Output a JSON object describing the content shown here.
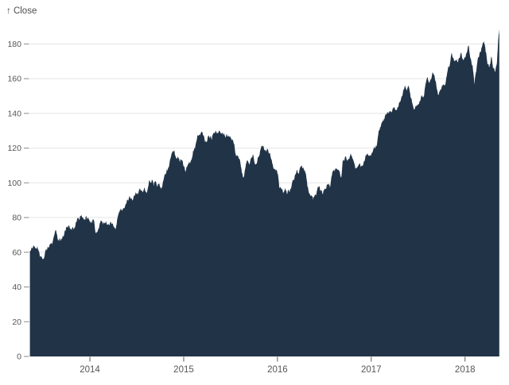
{
  "chart_data": {
    "type": "area",
    "title": "",
    "ylabel": "Close",
    "ylabel_display": "↑ Close",
    "series_name": "Close",
    "xlim": [
      2013.355,
      2018.367
    ],
    "ylim": [
      0,
      190
    ],
    "x_ticks": [
      2014,
      2015,
      2016,
      2017,
      2018
    ],
    "y_ticks": [
      0,
      20,
      40,
      60,
      80,
      100,
      120,
      140,
      160,
      180
    ],
    "grid": "horizontal",
    "legend": "none",
    "area_color": "#213346",
    "grid_color": "#e4e4e4",
    "tick_dash_color": "#8a8a8a",
    "xtick_mark_color": "#555555",
    "label_color": "#565656",
    "volatility": 1.6,
    "points": [
      [
        2013.36,
        60.4
      ],
      [
        2013.38,
        62.9
      ],
      [
        2013.4,
        64.0
      ],
      [
        2013.42,
        62.2
      ],
      [
        2013.44,
        63.6
      ],
      [
        2013.46,
        60.0
      ],
      [
        2013.48,
        57.5
      ],
      [
        2013.5,
        56.3
      ],
      [
        2013.52,
        59.5
      ],
      [
        2013.54,
        60.9
      ],
      [
        2013.56,
        62.6
      ],
      [
        2013.58,
        64.9
      ],
      [
        2013.6,
        65.2
      ],
      [
        2013.62,
        69.9
      ],
      [
        2013.64,
        72.5
      ],
      [
        2013.66,
        66.8
      ],
      [
        2013.68,
        68.3
      ],
      [
        2013.7,
        67.6
      ],
      [
        2013.72,
        69.0
      ],
      [
        2013.74,
        72.1
      ],
      [
        2013.76,
        74.7
      ],
      [
        2013.78,
        75.2
      ],
      [
        2013.8,
        73.2
      ],
      [
        2013.82,
        74.4
      ],
      [
        2013.84,
        74.2
      ],
      [
        2013.86,
        77.9
      ],
      [
        2013.88,
        79.4
      ],
      [
        2013.9,
        81.1
      ],
      [
        2013.92,
        80.0
      ],
      [
        2013.94,
        79.2
      ],
      [
        2013.96,
        80.9
      ],
      [
        2013.98,
        80.1
      ],
      [
        2014.0,
        77.3
      ],
      [
        2014.02,
        77.0
      ],
      [
        2014.04,
        78.6
      ],
      [
        2014.06,
        71.4
      ],
      [
        2014.08,
        71.6
      ],
      [
        2014.1,
        74.8
      ],
      [
        2014.12,
        78.0
      ],
      [
        2014.14,
        75.9
      ],
      [
        2014.16,
        76.8
      ],
      [
        2014.18,
        75.8
      ],
      [
        2014.2,
        76.7
      ],
      [
        2014.22,
        77.5
      ],
      [
        2014.24,
        76.6
      ],
      [
        2014.26,
        74.2
      ],
      [
        2014.28,
        75.0
      ],
      [
        2014.3,
        81.1
      ],
      [
        2014.32,
        84.3
      ],
      [
        2014.34,
        84.6
      ],
      [
        2014.36,
        85.4
      ],
      [
        2014.38,
        87.7
      ],
      [
        2014.4,
        90.4
      ],
      [
        2014.42,
        92.2
      ],
      [
        2014.44,
        91.3
      ],
      [
        2014.46,
        90.4
      ],
      [
        2014.48,
        92.9
      ],
      [
        2014.5,
        93.5
      ],
      [
        2014.52,
        95.0
      ],
      [
        2014.54,
        95.6
      ],
      [
        2014.56,
        94.7
      ],
      [
        2014.58,
        97.2
      ],
      [
        2014.6,
        94.5
      ],
      [
        2014.62,
        97.5
      ],
      [
        2014.64,
        100.9
      ],
      [
        2014.66,
        101.6
      ],
      [
        2014.68,
        98.0
      ],
      [
        2014.7,
        101.0
      ],
      [
        2014.72,
        97.9
      ],
      [
        2014.74,
        99.6
      ],
      [
        2014.76,
        96.3
      ],
      [
        2014.78,
        100.8
      ],
      [
        2014.8,
        105.2
      ],
      [
        2014.82,
        108.0
      ],
      [
        2014.84,
        108.9
      ],
      [
        2014.86,
        114.2
      ],
      [
        2014.88,
        117.6
      ],
      [
        2014.9,
        119.0
      ],
      [
        2014.92,
        114.1
      ],
      [
        2014.94,
        115.0
      ],
      [
        2014.96,
        111.8
      ],
      [
        2014.98,
        113.0
      ],
      [
        2015.0,
        109.3
      ],
      [
        2015.02,
        106.3
      ],
      [
        2015.04,
        109.8
      ],
      [
        2015.06,
        112.0
      ],
      [
        2015.08,
        113.1
      ],
      [
        2015.1,
        118.6
      ],
      [
        2015.12,
        119.7
      ],
      [
        2015.14,
        124.9
      ],
      [
        2015.16,
        127.1
      ],
      [
        2015.18,
        128.5
      ],
      [
        2015.2,
        129.1
      ],
      [
        2015.22,
        125.9
      ],
      [
        2015.24,
        123.6
      ],
      [
        2015.26,
        127.1
      ],
      [
        2015.28,
        125.9
      ],
      [
        2015.3,
        124.8
      ],
      [
        2015.32,
        128.7
      ],
      [
        2015.34,
        130.3
      ],
      [
        2015.36,
        128.9
      ],
      [
        2015.38,
        130.1
      ],
      [
        2015.4,
        128.6
      ],
      [
        2015.42,
        127.6
      ],
      [
        2015.44,
        127.0
      ],
      [
        2015.46,
        128.0
      ],
      [
        2015.48,
        126.6
      ],
      [
        2015.5,
        126.0
      ],
      [
        2015.52,
        125.2
      ],
      [
        2015.54,
        122.4
      ],
      [
        2015.56,
        115.2
      ],
      [
        2015.58,
        115.5
      ],
      [
        2015.6,
        113.2
      ],
      [
        2015.62,
        105.8
      ],
      [
        2015.64,
        103.1
      ],
      [
        2015.66,
        109.3
      ],
      [
        2015.68,
        112.9
      ],
      [
        2015.7,
        110.4
      ],
      [
        2015.72,
        114.2
      ],
      [
        2015.74,
        116.4
      ],
      [
        2015.76,
        110.8
      ],
      [
        2015.78,
        111.0
      ],
      [
        2015.8,
        115.3
      ],
      [
        2015.82,
        119.3
      ],
      [
        2015.84,
        121.1
      ],
      [
        2015.86,
        118.9
      ],
      [
        2015.88,
        117.8
      ],
      [
        2015.9,
        119.0
      ],
      [
        2015.92,
        117.3
      ],
      [
        2015.94,
        112.8
      ],
      [
        2015.96,
        108.0
      ],
      [
        2015.98,
        107.3
      ],
      [
        2016.0,
        105.4
      ],
      [
        2016.02,
        97.1
      ],
      [
        2016.04,
        96.7
      ],
      [
        2016.06,
        94.0
      ],
      [
        2016.08,
        96.9
      ],
      [
        2016.1,
        93.7
      ],
      [
        2016.12,
        96.0
      ],
      [
        2016.14,
        96.6
      ],
      [
        2016.16,
        101.0
      ],
      [
        2016.18,
        102.3
      ],
      [
        2016.2,
        105.9
      ],
      [
        2016.22,
        105.7
      ],
      [
        2016.24,
        108.7
      ],
      [
        2016.26,
        110.0
      ],
      [
        2016.28,
        108.0
      ],
      [
        2016.3,
        105.7
      ],
      [
        2016.32,
        97.8
      ],
      [
        2016.34,
        93.7
      ],
      [
        2016.36,
        92.7
      ],
      [
        2016.38,
        90.3
      ],
      [
        2016.4,
        93.4
      ],
      [
        2016.42,
        95.2
      ],
      [
        2016.44,
        97.9
      ],
      [
        2016.46,
        95.3
      ],
      [
        2016.48,
        93.4
      ],
      [
        2016.5,
        95.9
      ],
      [
        2016.52,
        96.7
      ],
      [
        2016.54,
        98.8
      ],
      [
        2016.56,
        97.3
      ],
      [
        2016.58,
        104.2
      ],
      [
        2016.6,
        107.5
      ],
      [
        2016.62,
        108.2
      ],
      [
        2016.64,
        107.6
      ],
      [
        2016.66,
        106.9
      ],
      [
        2016.68,
        103.1
      ],
      [
        2016.7,
        113.6
      ],
      [
        2016.72,
        114.9
      ],
      [
        2016.74,
        112.7
      ],
      [
        2016.76,
        113.7
      ],
      [
        2016.78,
        117.1
      ],
      [
        2016.8,
        114.1
      ],
      [
        2016.82,
        111.1
      ],
      [
        2016.84,
        108.4
      ],
      [
        2016.86,
        109.9
      ],
      [
        2016.88,
        111.0
      ],
      [
        2016.9,
        109.9
      ],
      [
        2016.92,
        112.1
      ],
      [
        2016.94,
        115.8
      ],
      [
        2016.96,
        116.7
      ],
      [
        2016.98,
        115.8
      ],
      [
        2017.0,
        116.2
      ],
      [
        2017.02,
        119.0
      ],
      [
        2017.04,
        120.0
      ],
      [
        2017.06,
        121.9
      ],
      [
        2017.08,
        130.3
      ],
      [
        2017.1,
        132.1
      ],
      [
        2017.12,
        135.7
      ],
      [
        2017.14,
        136.7
      ],
      [
        2017.16,
        139.1
      ],
      [
        2017.18,
        139.8
      ],
      [
        2017.2,
        140.9
      ],
      [
        2017.22,
        140.6
      ],
      [
        2017.24,
        143.7
      ],
      [
        2017.26,
        141.8
      ],
      [
        2017.28,
        143.6
      ],
      [
        2017.3,
        146.6
      ],
      [
        2017.32,
        148.9
      ],
      [
        2017.34,
        153.0
      ],
      [
        2017.36,
        156.1
      ],
      [
        2017.38,
        153.3
      ],
      [
        2017.4,
        155.4
      ],
      [
        2017.42,
        149.0
      ],
      [
        2017.44,
        145.4
      ],
      [
        2017.46,
        142.3
      ],
      [
        2017.48,
        144.0
      ],
      [
        2017.5,
        145.1
      ],
      [
        2017.52,
        147.0
      ],
      [
        2017.54,
        150.3
      ],
      [
        2017.56,
        149.0
      ],
      [
        2017.58,
        157.1
      ],
      [
        2017.6,
        160.9
      ],
      [
        2017.62,
        157.9
      ],
      [
        2017.64,
        159.9
      ],
      [
        2017.66,
        163.0
      ],
      [
        2017.68,
        159.3
      ],
      [
        2017.7,
        154.0
      ],
      [
        2017.72,
        151.0
      ],
      [
        2017.74,
        153.8
      ],
      [
        2017.76,
        155.8
      ],
      [
        2017.78,
        156.0
      ],
      [
        2017.8,
        160.5
      ],
      [
        2017.82,
        166.7
      ],
      [
        2017.84,
        169.0
      ],
      [
        2017.86,
        174.7
      ],
      [
        2017.88,
        171.1
      ],
      [
        2017.9,
        170.2
      ],
      [
        2017.92,
        169.4
      ],
      [
        2017.94,
        171.9
      ],
      [
        2017.96,
        175.0
      ],
      [
        2017.98,
        170.6
      ],
      [
        2018.0,
        172.3
      ],
      [
        2018.02,
        175.0
      ],
      [
        2018.04,
        179.3
      ],
      [
        2018.06,
        171.5
      ],
      [
        2018.08,
        167.8
      ],
      [
        2018.1,
        156.5
      ],
      [
        2018.12,
        164.3
      ],
      [
        2018.14,
        172.4
      ],
      [
        2018.16,
        175.6
      ],
      [
        2018.18,
        178.1
      ],
      [
        2018.2,
        181.7
      ],
      [
        2018.22,
        175.3
      ],
      [
        2018.24,
        168.3
      ],
      [
        2018.26,
        166.7
      ],
      [
        2018.28,
        172.8
      ],
      [
        2018.3,
        165.7
      ],
      [
        2018.32,
        163.7
      ],
      [
        2018.34,
        169.1
      ],
      [
        2018.35,
        178.9
      ],
      [
        2018.365,
        188.6
      ]
    ]
  }
}
